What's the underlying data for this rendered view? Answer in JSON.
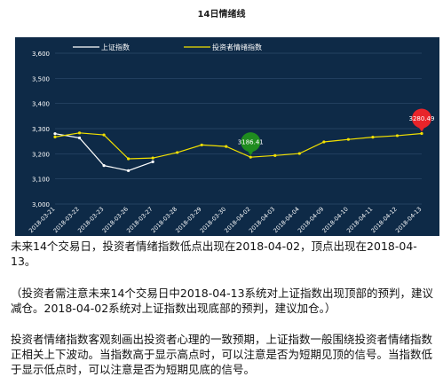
{
  "title": "14日情绪线",
  "chart_data": {
    "type": "line",
    "x": [
      "2018-03-21",
      "2018-03-22",
      "2018-03-23",
      "2018-03-26",
      "2018-03-27",
      "2018-03-28",
      "2018-03-29",
      "2018-03-30",
      "2018-04-02",
      "2018-04-03",
      "2018-04-04",
      "2018-04-09",
      "2018-04-10",
      "2018-04-11",
      "2018-04-12",
      "2018-04-13"
    ],
    "series": [
      {
        "name": "上证指数",
        "color": "#ffffff",
        "values": [
          3280,
          3263,
          3153,
          3133,
          3168,
          null,
          null,
          null,
          null,
          null,
          null,
          null,
          null,
          null,
          null,
          null
        ]
      },
      {
        "name": "投资者情绪指数",
        "color": "#f2e000",
        "values": [
          3267,
          3283,
          3275,
          3180,
          3183,
          3205,
          3235,
          3229,
          3186.41,
          3193,
          3201,
          3247,
          3257,
          3266,
          3272,
          3280.49
        ]
      }
    ],
    "ylim": [
      3000,
      3600
    ],
    "yticks": [
      "3,000",
      "3,100",
      "3,200",
      "3,300",
      "3,400",
      "3,500",
      "3,600"
    ],
    "grid": true,
    "legend": "top-left",
    "annotations": [
      {
        "label": "3186.41",
        "x": "2018-04-02",
        "value": 3186.41,
        "color": "#1f8c1f"
      },
      {
        "label": "3280.49",
        "x": "2018-04-13",
        "value": 3280.49,
        "color": "#e8242a"
      }
    ]
  },
  "paragraphs": [
    "未来14个交易日，投资者情绪指数低点出现在2018-04-02，顶点出现在2018-04-13。",
    "（投资者需注意未来14个交易日中2018-04-13系统对上证指数出现顶部的预判，建议减仓。2018-04-02系统对上证指数出现底部的预判，建议加仓。）",
    "投资者情绪指数客观刻画出投资者心理的一致预期，上证指数一般围绕投资者情绪指数正相关上下波动。当指数高于显示高点时，可以注意是否为短期见顶的信号。当指数低于显示低点时，可以注意是否为短期见底的信号。"
  ]
}
